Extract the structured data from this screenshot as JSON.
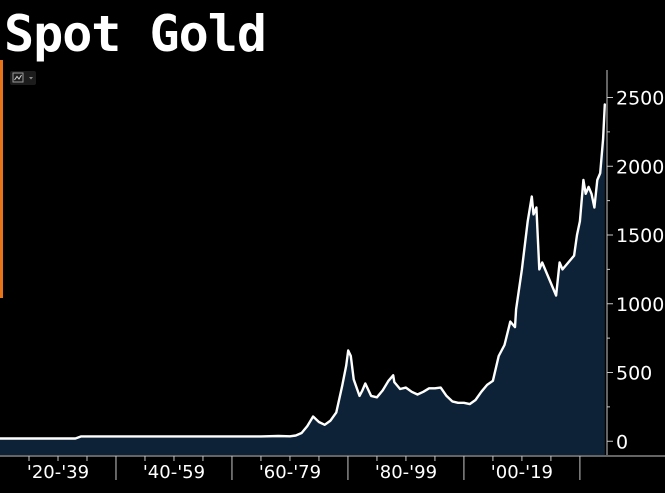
{
  "title": "Spot Gold",
  "toolbar": {
    "icon": "chart-type-icon",
    "dropdown_icon": "dropdown-caret-icon"
  },
  "colors": {
    "background": "#000000",
    "line": "#ffffff",
    "area_fill": "#0d2236",
    "accent": "#e8741a",
    "axis": "#c8c8c8"
  },
  "chart_data": {
    "type": "area",
    "title": "Spot Gold",
    "xlabel": "",
    "ylabel": "",
    "xlim": [
      1920,
      2024.5
    ],
    "ylim": [
      -100,
      2700
    ],
    "y_ticks": [
      0,
      500,
      1000,
      1500,
      2000,
      2500
    ],
    "y_tick_labels": [
      "0",
      "500",
      "1000",
      "1500",
      "2000",
      "2500"
    ],
    "x_periods": [
      "'20-'39",
      "'40-'59",
      "'60-'79",
      "'80-'99",
      "'00-'19"
    ],
    "grid": false,
    "axis_position": "right",
    "series": [
      {
        "x": [
          1920,
          1925,
          1930,
          1933,
          1934,
          1940,
          1950,
          1960,
          1965,
          1968,
          1970,
          1971,
          1972,
          1973,
          1974,
          1975,
          1976,
          1977,
          1978,
          1979,
          1979.7,
          1980.05,
          1980.5,
          1981,
          1982,
          1982.5,
          1983,
          1984,
          1985,
          1986,
          1987,
          1987.8,
          1988,
          1989,
          1990,
          1991,
          1992,
          1993,
          1994,
          1995,
          1996,
          1997,
          1998,
          1999,
          2000,
          2001,
          2002,
          2003,
          2004,
          2005,
          2006,
          2007,
          2008,
          2008.8,
          2009,
          2010,
          2011,
          2011.7,
          2012,
          2012.5,
          2013,
          2013.5,
          2014,
          2015,
          2015.9,
          2016.5,
          2017,
          2018,
          2019,
          2019.5,
          2020,
          2020.6,
          2021,
          2021.5,
          2022,
          2022.5,
          2023,
          2023.5,
          2024,
          2024.3
        ],
        "y": [
          20,
          20,
          20,
          20,
          35,
          35,
          35,
          35,
          35,
          38,
          36,
          42,
          60,
          110,
          180,
          140,
          120,
          150,
          210,
          400,
          550,
          660,
          620,
          450,
          330,
          370,
          420,
          330,
          320,
          370,
          440,
          480,
          430,
          380,
          390,
          360,
          340,
          360,
          385,
          385,
          390,
          330,
          290,
          280,
          280,
          270,
          300,
          360,
          410,
          440,
          620,
          700,
          870,
          830,
          960,
          1250,
          1600,
          1780,
          1650,
          1700,
          1250,
          1300,
          1250,
          1150,
          1060,
          1300,
          1250,
          1300,
          1350,
          1500,
          1600,
          1900,
          1800,
          1850,
          1800,
          1700,
          1900,
          1950,
          2200,
          2450
        ]
      }
    ]
  }
}
